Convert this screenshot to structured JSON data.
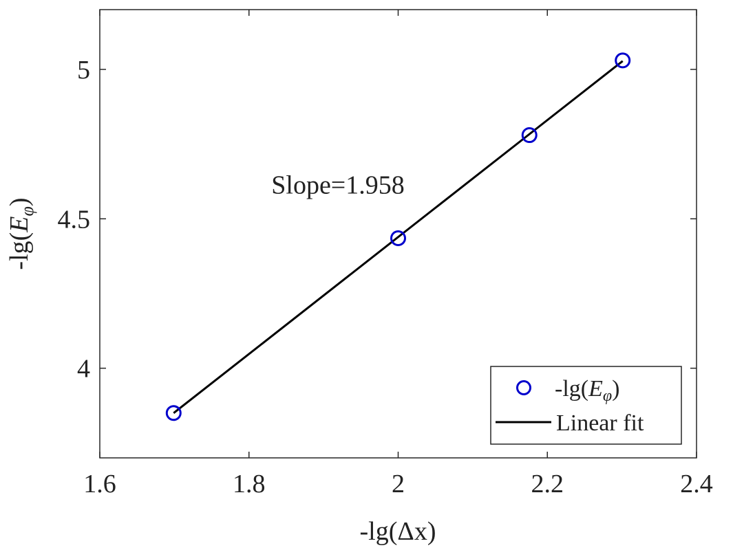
{
  "chart_data": {
    "type": "scatter",
    "title": "",
    "xlabel": "-lg(Δx)",
    "ylabel": {
      "prefix": "-lg(",
      "var": "E",
      "sub": "φ",
      "suffix": ")"
    },
    "xlim": [
      1.6,
      2.4
    ],
    "ylim": [
      3.7,
      5.2
    ],
    "x_ticks": [
      1.6,
      1.8,
      2.0,
      2.2,
      2.4
    ],
    "x_tick_labels": [
      "1.6",
      "1.8",
      "2",
      "2.2",
      "2.4"
    ],
    "y_ticks": [
      4.0,
      4.5,
      5.0
    ],
    "y_tick_labels": [
      "4",
      "4.5",
      "5"
    ],
    "grid": false,
    "series": [
      {
        "name": {
          "prefix": "-lg(",
          "var": "E",
          "sub": "φ",
          "suffix": ")"
        },
        "kind": "scatter",
        "marker": "open-circle",
        "color": "#0000CC",
        "x": [
          1.699,
          2.0,
          2.176,
          2.301
        ],
        "y": [
          3.85,
          4.435,
          4.78,
          5.03
        ]
      },
      {
        "name": "Linear fit",
        "kind": "line",
        "color": "#000000",
        "x": [
          1.699,
          2.301
        ],
        "y": [
          3.85,
          5.028
        ]
      }
    ],
    "annotation": {
      "text": "Slope=1.958",
      "x": 1.83,
      "y": 4.585
    },
    "legend": {
      "position": "bottom-right"
    }
  }
}
